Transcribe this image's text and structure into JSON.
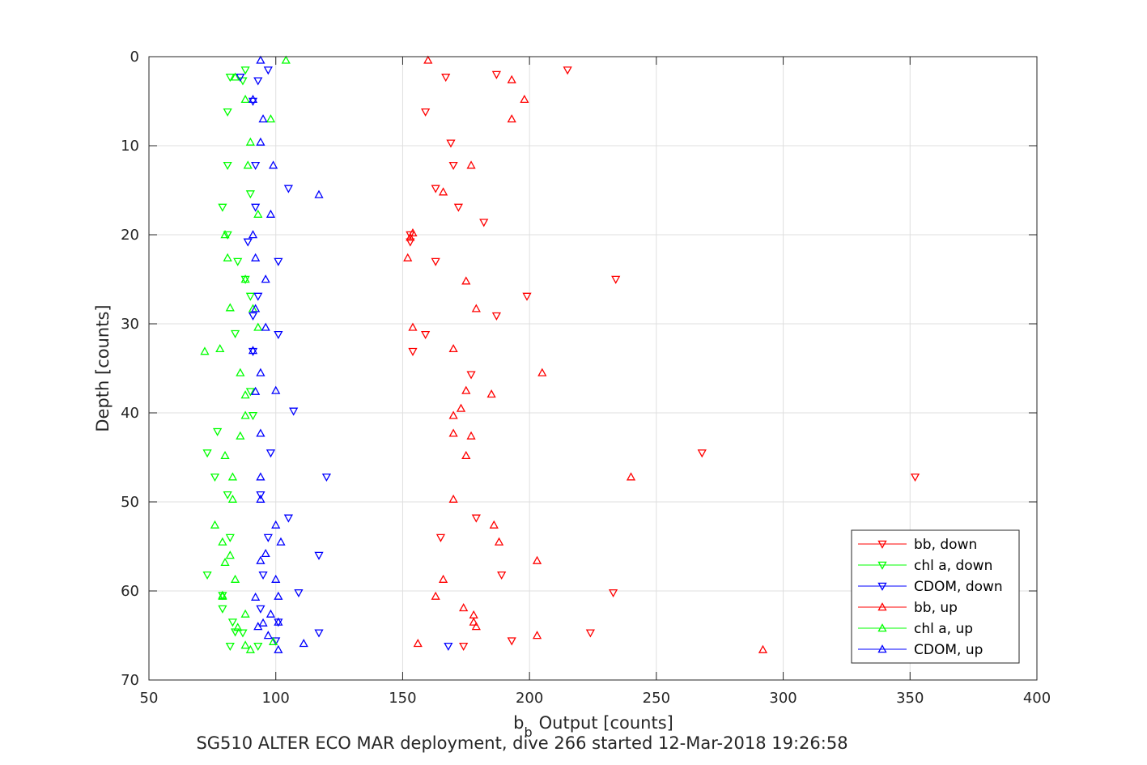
{
  "chart_data": {
    "type": "scatter",
    "title": "",
    "xlabel": "Output [counts]",
    "xlabel_prefix": "b",
    "xlabel_subscript": "b",
    "ylabel": "Depth [counts]",
    "caption": "SG510 ALTER ECO MAR deployment, dive 266 started 12-Mar-2018 19:26:58",
    "xlim": [
      50,
      400
    ],
    "ylim": [
      0,
      70
    ],
    "y_reversed": true,
    "xticks": [
      50,
      100,
      150,
      200,
      250,
      300,
      350,
      400
    ],
    "yticks": [
      0,
      10,
      20,
      30,
      40,
      50,
      60,
      70
    ],
    "grid": true,
    "legend_position": "lower-right",
    "series": [
      {
        "name": "bb, down",
        "marker": "triangle-down",
        "color": "#ff0000",
        "x": [
          215,
          187,
          167,
          159,
          169,
          170,
          163,
          172,
          182,
          153,
          153,
          163,
          234,
          199,
          187,
          159,
          154,
          177,
          268,
          352,
          179,
          165,
          189,
          233,
          224,
          193,
          174
        ],
        "y": [
          1.5,
          2.0,
          2.3,
          6.2,
          9.7,
          12.2,
          14.8,
          16.9,
          18.6,
          20.0,
          20.8,
          23.0,
          25.0,
          26.9,
          29.1,
          31.2,
          33.1,
          35.7,
          44.5,
          47.2,
          51.8,
          54.0,
          58.2,
          60.2,
          64.7,
          65.6,
          66.2
        ]
      },
      {
        "name": "chl a, down",
        "marker": "triangle-down",
        "color": "#00ff00",
        "x": [
          88,
          82,
          87,
          81,
          81,
          90,
          79,
          81,
          85,
          88,
          90,
          84,
          90,
          91,
          77,
          73,
          76,
          81,
          82,
          73,
          79,
          79,
          83,
          84,
          87,
          82,
          93
        ],
        "y": [
          1.5,
          2.3,
          2.7,
          6.2,
          12.2,
          15.4,
          16.9,
          20.0,
          23.0,
          25.0,
          26.9,
          31.1,
          37.6,
          40.3,
          42.1,
          44.5,
          47.2,
          49.2,
          54.0,
          58.2,
          60.5,
          62.0,
          63.5,
          64.6,
          64.7,
          66.2,
          66.2
        ]
      },
      {
        "name": "CDOM, down",
        "marker": "triangle-down",
        "color": "#0000ff",
        "x": [
          97,
          86,
          93,
          91,
          92,
          105,
          92,
          89,
          101,
          93,
          91,
          101,
          91,
          107,
          98,
          120,
          94,
          105,
          97,
          117,
          95,
          109,
          94,
          117,
          101,
          100,
          168
        ],
        "y": [
          1.5,
          2.3,
          2.7,
          5.0,
          12.2,
          14.8,
          16.9,
          20.8,
          23.0,
          26.9,
          29.1,
          31.2,
          33.1,
          39.8,
          44.5,
          47.2,
          49.2,
          51.8,
          54.0,
          56.0,
          58.2,
          60.2,
          62.0,
          64.7,
          63.5,
          65.6,
          66.2
        ]
      },
      {
        "name": "bb, up",
        "marker": "triangle-up",
        "color": "#ff0000",
        "x": [
          160,
          193,
          198,
          193,
          177,
          166,
          154,
          153,
          152,
          175,
          179,
          154,
          170,
          205,
          175,
          185,
          173,
          170,
          177,
          170,
          175,
          240,
          170,
          186,
          188,
          203,
          166,
          163,
          174,
          178,
          179,
          178,
          203,
          156,
          292
        ],
        "y": [
          0.4,
          2.6,
          4.8,
          7.0,
          12.2,
          15.2,
          19.8,
          20.3,
          22.6,
          25.2,
          28.3,
          30.4,
          32.8,
          35.5,
          37.5,
          37.9,
          39.5,
          40.3,
          42.6,
          42.3,
          44.8,
          47.2,
          49.7,
          52.6,
          54.5,
          56.6,
          58.7,
          60.6,
          61.9,
          62.7,
          64.0,
          63.5,
          65.0,
          65.9,
          66.6
        ]
      },
      {
        "name": "chl a, up",
        "marker": "triangle-up",
        "color": "#00ff00",
        "x": [
          104,
          84,
          88,
          98,
          90,
          89,
          93,
          80,
          81,
          88,
          82,
          91,
          93,
          78,
          72,
          86,
          88,
          88,
          86,
          80,
          83,
          83,
          76,
          79,
          82,
          80,
          84,
          79,
          79,
          88,
          85,
          99,
          90,
          88
        ],
        "y": [
          0.4,
          2.3,
          4.8,
          7.0,
          9.6,
          12.2,
          17.7,
          20.0,
          22.6,
          25.0,
          28.2,
          28.3,
          30.4,
          32.8,
          33.1,
          35.5,
          38.0,
          40.3,
          42.6,
          44.8,
          47.2,
          49.7,
          52.6,
          54.5,
          56.0,
          56.8,
          58.7,
          60.5,
          60.6,
          62.6,
          64.1,
          65.7,
          66.6,
          66.1
        ]
      },
      {
        "name": "CDOM, up",
        "marker": "triangle-up",
        "color": "#0000ff",
        "x": [
          94,
          91,
          95,
          94,
          99,
          117,
          98,
          91,
          92,
          96,
          92,
          96,
          91,
          94,
          92,
          100,
          94,
          94,
          94,
          100,
          102,
          94,
          100,
          101,
          92,
          98,
          93,
          97,
          101,
          111,
          101,
          95,
          96
        ],
        "y": [
          0.4,
          4.8,
          7.0,
          9.6,
          12.2,
          15.5,
          17.7,
          20.0,
          22.6,
          25.0,
          28.3,
          30.4,
          33.0,
          35.5,
          37.6,
          37.5,
          42.3,
          47.2,
          49.7,
          52.6,
          54.5,
          56.6,
          58.7,
          60.6,
          60.7,
          62.6,
          64.0,
          65.0,
          63.5,
          65.9,
          66.6,
          63.6,
          55.8
        ]
      }
    ]
  }
}
